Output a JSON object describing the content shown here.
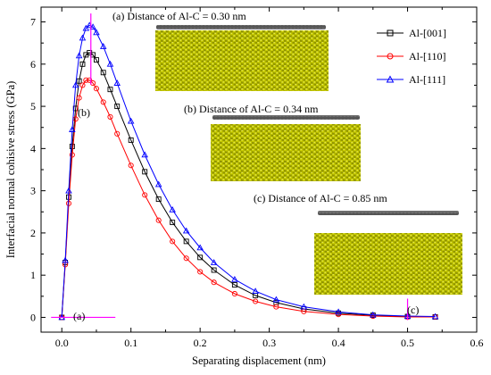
{
  "chart_data": {
    "type": "scatter",
    "xlabel": "Separating displacement (nm)",
    "ylabel": "Interfacial normal cohisive stress (GPa)",
    "xlim": [
      -0.03,
      0.6
    ],
    "ylim": [
      -0.35,
      7.35
    ],
    "x_ticks": [
      0.0,
      0.1,
      0.2,
      0.3,
      0.4,
      0.5,
      0.6
    ],
    "y_ticks": [
      0,
      1,
      2,
      3,
      4,
      5,
      6,
      7
    ],
    "x_tick_labels": [
      "0.0",
      "0.1",
      "0.2",
      "0.3",
      "0.4",
      "0.5",
      "0.6"
    ],
    "y_tick_labels": [
      "0",
      "1",
      "2",
      "3",
      "4",
      "5",
      "6",
      "7"
    ],
    "grid": false,
    "legend_position": "top-right",
    "series": [
      {
        "name": "Al-[001]",
        "color": "#000000",
        "marker": "square",
        "x": [
          0.0,
          0.005,
          0.01,
          0.015,
          0.02,
          0.025,
          0.03,
          0.035,
          0.04,
          0.045,
          0.05,
          0.06,
          0.07,
          0.08,
          0.1,
          0.12,
          0.14,
          0.16,
          0.18,
          0.2,
          0.22,
          0.25,
          0.28,
          0.31,
          0.35,
          0.4,
          0.45,
          0.5,
          0.54
        ],
        "y": [
          0.0,
          1.3,
          2.85,
          4.05,
          4.95,
          5.6,
          6.0,
          6.22,
          6.27,
          6.22,
          6.1,
          5.8,
          5.4,
          5.0,
          4.2,
          3.45,
          2.8,
          2.25,
          1.8,
          1.42,
          1.12,
          0.77,
          0.52,
          0.35,
          0.2,
          0.1,
          0.05,
          0.02,
          0.01
        ]
      },
      {
        "name": "Al-[110]",
        "color": "#ff0000",
        "marker": "circle",
        "x": [
          0.0,
          0.005,
          0.01,
          0.015,
          0.02,
          0.025,
          0.03,
          0.035,
          0.04,
          0.045,
          0.05,
          0.06,
          0.07,
          0.08,
          0.1,
          0.12,
          0.14,
          0.16,
          0.18,
          0.2,
          0.22,
          0.25,
          0.28,
          0.31,
          0.35,
          0.4,
          0.45,
          0.5,
          0.54
        ],
        "y": [
          0.0,
          1.25,
          2.7,
          3.85,
          4.7,
          5.2,
          5.5,
          5.62,
          5.62,
          5.55,
          5.42,
          5.1,
          4.75,
          4.35,
          3.6,
          2.9,
          2.3,
          1.8,
          1.4,
          1.08,
          0.83,
          0.56,
          0.38,
          0.25,
          0.14,
          0.07,
          0.03,
          0.01,
          0.01
        ]
      },
      {
        "name": "Al-[111]",
        "color": "#0000ff",
        "marker": "triangle",
        "x": [
          0.0,
          0.005,
          0.01,
          0.015,
          0.02,
          0.025,
          0.03,
          0.035,
          0.04,
          0.045,
          0.05,
          0.06,
          0.07,
          0.08,
          0.1,
          0.12,
          0.14,
          0.16,
          0.18,
          0.2,
          0.22,
          0.25,
          0.28,
          0.31,
          0.35,
          0.4,
          0.45,
          0.5,
          0.54
        ],
        "y": [
          0.0,
          1.35,
          3.0,
          4.45,
          5.5,
          6.2,
          6.62,
          6.85,
          6.92,
          6.88,
          6.75,
          6.42,
          6.0,
          5.55,
          4.65,
          3.85,
          3.15,
          2.55,
          2.05,
          1.65,
          1.3,
          0.9,
          0.62,
          0.42,
          0.25,
          0.13,
          0.06,
          0.03,
          0.02
        ]
      }
    ],
    "markers": [
      {
        "label": "(a)",
        "x": 0.0,
        "y": 0.0,
        "color": "#ff00ff"
      },
      {
        "label": "(b)",
        "x": 0.042,
        "y": 5.6,
        "color": "#ff00ff"
      },
      {
        "label": "(c)",
        "x": 0.5,
        "y": 0.02,
        "color": "#ff00ff"
      }
    ],
    "insets": [
      {
        "caption": "(a) Distance of Al-C = 0.30 nm"
      },
      {
        "caption": "(b) Distance of Al-C = 0.34 nm"
      },
      {
        "caption": "(c) Distance of Al-C = 0.85 nm"
      }
    ],
    "inset_colors": {
      "aluminum": "#c8cc00",
      "carbon": "#6e6e6e"
    }
  }
}
